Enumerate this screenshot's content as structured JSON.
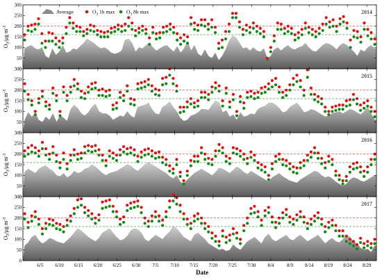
{
  "chart_data": {
    "type": "area-scatter",
    "xlabel": "Date",
    "ylabel": "O",
    "ylabel_sub": "3",
    "ylabel_unit": "/μg m",
    "ylabel_sup": "-3",
    "x_ticks": [
      "6/5",
      "6/10",
      "6/15",
      "6/20",
      "6/25",
      "6/30",
      "7/5",
      "7/10",
      "7/15",
      "7/20",
      "7/25",
      "7/30",
      "8/4",
      "8/9",
      "8/14",
      "8/19",
      "8/24",
      "8/29"
    ],
    "ylim": [
      0,
      300
    ],
    "y_ticks": [
      0,
      50,
      100,
      150,
      200,
      250,
      300
    ],
    "reference_lines": [
      {
        "value": 200,
        "color": "#e03030",
        "style": "dashed"
      },
      {
        "value": 160,
        "color": "#2a9a2a",
        "style": "dashed"
      }
    ],
    "legend": {
      "position": "top-left",
      "entries": [
        {
          "label": "Average",
          "kind": "area",
          "color": "#8a8a8a"
        },
        {
          "label": "O",
          "sub": "3",
          "suffix": " 1h max",
          "kind": "marker",
          "color": "#e01010"
        },
        {
          "label": "O",
          "sub": "3",
          "suffix": " 8h max",
          "kind": "marker",
          "color": "#128a12"
        }
      ]
    },
    "panels": [
      {
        "year": "2014",
        "average": [
          95,
          105,
          110,
          95,
          90,
          100,
          60,
          50,
          95,
          65,
          80,
          110,
          75,
          80,
          95,
          90,
          105,
          120,
          140,
          130,
          120,
          105,
          95,
          100,
          90,
          75,
          70,
          75,
          85,
          135,
          140,
          120,
          80,
          100,
          95,
          110,
          120,
          100,
          85,
          95,
          105,
          110,
          95,
          80,
          105,
          75,
          95,
          130,
          85,
          110,
          70,
          60,
          90,
          60,
          50,
          75,
          40,
          60,
          90,
          130,
          155,
          145,
          120,
          95,
          100,
          85,
          100,
          85,
          80,
          95,
          50,
          60,
          90,
          100,
          85,
          100,
          110,
          95,
          90,
          100,
          105,
          120,
          100,
          85,
          80,
          95,
          110,
          120,
          115,
          105,
          90,
          110,
          120,
          110,
          95,
          80,
          60,
          90,
          80,
          100,
          110,
          95
        ],
        "o3_1h_max": [
          160,
          200,
          205,
          210,
          235,
          165,
          130,
          170,
          165,
          145,
          130,
          145,
          195,
          240,
          215,
          200,
          195,
          175,
          185,
          205,
          200,
          180,
          175,
          170,
          175,
          190,
          195,
          205,
          200,
          210,
          240,
          215,
          180,
          190,
          200,
          185,
          145,
          195,
          165,
          170,
          195,
          200,
          210,
          195,
          165,
          145,
          160,
          150,
          240,
          215,
          205,
          230,
          230,
          210,
          230,
          195,
          120,
          135,
          175,
          210,
          260,
          260,
          220,
          185,
          205,
          195,
          215,
          200,
          190,
          175,
          50,
          100,
          155,
          215,
          210,
          190,
          200,
          190,
          160,
          170,
          185,
          215,
          195,
          185,
          175,
          190,
          210,
          240,
          220,
          230,
          200,
          235,
          245,
          215,
          135,
          180,
          175,
          150,
          215,
          185,
          170,
          140
        ],
        "o3_8h_max": [
          135,
          180,
          175,
          185,
          210,
          120,
          100,
          130,
          130,
          115,
          100,
          120,
          165,
          215,
          190,
          175,
          175,
          155,
          165,
          180,
          175,
          160,
          150,
          150,
          150,
          170,
          175,
          185,
          175,
          180,
          200,
          185,
          155,
          170,
          180,
          165,
          115,
          170,
          140,
          145,
          170,
          175,
          185,
          170,
          135,
          115,
          130,
          120,
          210,
          185,
          180,
          205,
          200,
          185,
          195,
          170,
          95,
          100,
          140,
          175,
          240,
          240,
          195,
          160,
          180,
          170,
          190,
          175,
          165,
          150,
          45,
          80,
          130,
          185,
          185,
          165,
          175,
          165,
          135,
          145,
          160,
          190,
          170,
          160,
          150,
          165,
          180,
          210,
          195,
          200,
          175,
          210,
          220,
          190,
          100,
          150,
          145,
          125,
          185,
          155,
          140,
          115
        ]
      },
      {
        "year": "2015",
        "average": [
          60,
          95,
          75,
          90,
          60,
          50,
          75,
          60,
          90,
          50,
          80,
          70,
          55,
          110,
          130,
          115,
          90,
          80,
          95,
          120,
          135,
          100,
          90,
          90,
          80,
          60,
          70,
          80,
          75,
          100,
          80,
          70,
          120,
          125,
          130,
          140,
          110,
          90,
          85,
          120,
          130,
          145,
          120,
          100,
          70,
          55,
          60,
          80,
          85,
          95,
          110,
          110,
          105,
          130,
          150,
          140,
          95,
          105,
          75,
          85,
          60,
          95,
          75,
          80,
          90,
          85,
          110,
          120,
          125,
          140,
          140,
          130,
          115,
          95,
          100,
          120,
          130,
          140,
          120,
          95,
          100,
          110,
          105,
          95,
          85,
          75,
          80,
          90,
          95,
          100,
          90,
          100,
          110,
          105,
          95,
          85,
          100,
          120,
          90,
          60
        ],
        "o3_1h_max": [
          230,
          180,
          150,
          100,
          160,
          195,
          145,
          130,
          210,
          175,
          100,
          215,
          175,
          215,
          250,
          230,
          195,
          185,
          215,
          230,
          235,
          200,
          205,
          195,
          200,
          130,
          140,
          190,
          175,
          220,
          160,
          155,
          230,
          235,
          240,
          250,
          220,
          205,
          200,
          255,
          260,
          300,
          255,
          220,
          120,
          120,
          145,
          160,
          140,
          150,
          190,
          190,
          180,
          215,
          235,
          220,
          150,
          210,
          145,
          180,
          100,
          170,
          140,
          190,
          195,
          185,
          190,
          210,
          215,
          230,
          245,
          255,
          215,
          190,
          200,
          225,
          255,
          270,
          245,
          200,
          295,
          210,
          180,
          170,
          160,
          120,
          100,
          120,
          125,
          130,
          130,
          150,
          155,
          180,
          160,
          130,
          140,
          150,
          120,
          100
        ],
        "o3_8h_max": [
          195,
          155,
          130,
          85,
          140,
          170,
          125,
          110,
          185,
          150,
          80,
          190,
          150,
          190,
          220,
          205,
          165,
          160,
          190,
          205,
          210,
          175,
          175,
          170,
          175,
          110,
          115,
          165,
          150,
          195,
          135,
          130,
          205,
          210,
          215,
          225,
          195,
          180,
          175,
          225,
          230,
          270,
          230,
          195,
          95,
          100,
          120,
          135,
          120,
          125,
          165,
          165,
          155,
          190,
          210,
          195,
          125,
          185,
          120,
          155,
          80,
          145,
          115,
          165,
          170,
          160,
          165,
          185,
          190,
          205,
          215,
          225,
          190,
          165,
          175,
          200,
          225,
          240,
          215,
          175,
          260,
          180,
          155,
          145,
          135,
          100,
          85,
          100,
          105,
          110,
          110,
          125,
          130,
          155,
          135,
          105,
          115,
          125,
          100,
          75
        ]
      },
      {
        "year": "2016",
        "average": [
          115,
          130,
          120,
          110,
          130,
          140,
          145,
          130,
          120,
          100,
          95,
          110,
          90,
          100,
          120,
          110,
          115,
          130,
          135,
          150,
          140,
          125,
          110,
          100,
          110,
          115,
          120,
          130,
          140,
          150,
          145,
          130,
          120,
          135,
          150,
          160,
          150,
          140,
          130,
          120,
          110,
          95,
          85,
          100,
          70,
          60,
          80,
          95,
          110,
          120,
          130,
          120,
          110,
          100,
          115,
          135,
          130,
          120,
          110,
          125,
          140,
          130,
          115,
          105,
          120,
          110,
          100,
          90,
          80,
          70,
          90,
          100,
          110,
          95,
          85,
          75,
          70,
          65,
          80,
          90,
          100,
          110,
          120,
          115,
          100,
          90,
          95,
          85,
          70,
          60,
          50,
          60,
          80,
          90,
          85,
          75,
          70,
          80,
          90,
          100
        ],
        "o3_1h_max": [
          215,
          230,
          240,
          230,
          215,
          255,
          225,
          200,
          235,
          195,
          160,
          205,
          155,
          195,
          220,
          200,
          205,
          235,
          240,
          235,
          240,
          220,
          195,
          170,
          215,
          205,
          195,
          220,
          235,
          225,
          230,
          220,
          190,
          210,
          220,
          225,
          215,
          205,
          210,
          185,
          175,
          145,
          130,
          175,
          115,
          75,
          120,
          170,
          190,
          190,
          230,
          200,
          180,
          175,
          215,
          245,
          230,
          190,
          180,
          230,
          225,
          215,
          200,
          180,
          210,
          195,
          160,
          150,
          140,
          100,
          155,
          190,
          200,
          175,
          170,
          155,
          140,
          135,
          160,
          170,
          195,
          210,
          230,
          205,
          180,
          160,
          190,
          175,
          120,
          100,
          75,
          95,
          140,
          155,
          160,
          140,
          120,
          140,
          175,
          200
        ],
        "o3_8h_max": [
          190,
          200,
          210,
          205,
          190,
          225,
          195,
          175,
          205,
          165,
          135,
          175,
          130,
          170,
          195,
          175,
          180,
          205,
          215,
          210,
          215,
          195,
          170,
          145,
          190,
          180,
          170,
          195,
          210,
          200,
          205,
          195,
          165,
          185,
          195,
          200,
          190,
          180,
          185,
          160,
          150,
          120,
          110,
          150,
          95,
          60,
          100,
          145,
          165,
          165,
          205,
          175,
          155,
          150,
          190,
          215,
          205,
          165,
          155,
          205,
          200,
          190,
          175,
          155,
          185,
          170,
          135,
          125,
          115,
          80,
          130,
          165,
          175,
          150,
          145,
          130,
          115,
          110,
          135,
          145,
          170,
          185,
          205,
          180,
          155,
          135,
          165,
          150,
          100,
          80,
          60,
          75,
          115,
          130,
          135,
          115,
          95,
          115,
          150,
          175
        ]
      },
      {
        "year": "2017",
        "average": [
          70,
          85,
          110,
          120,
          95,
          80,
          90,
          105,
          100,
          90,
          85,
          80,
          95,
          110,
          130,
          150,
          140,
          125,
          110,
          100,
          90,
          105,
          130,
          140,
          150,
          130,
          110,
          95,
          100,
          115,
          140,
          150,
          145,
          130,
          100,
          90,
          105,
          120,
          110,
          100,
          120,
          135,
          160,
          150,
          130,
          110,
          100,
          90,
          120,
          130,
          115,
          100,
          80,
          70,
          60,
          50,
          55,
          45,
          50,
          75,
          60,
          50,
          70,
          90,
          100,
          110,
          95,
          80,
          110,
          125,
          100,
          90,
          100,
          110,
          120,
          100,
          95,
          110,
          120,
          105,
          90,
          100,
          110,
          120,
          100,
          80,
          95,
          105,
          90,
          85,
          100,
          120,
          110,
          90,
          80,
          60,
          50,
          55,
          40,
          70
        ],
        "o3_1h_max": [
          220,
          180,
          210,
          230,
          195,
          150,
          175,
          195,
          190,
          175,
          170,
          160,
          190,
          210,
          245,
          285,
          290,
          250,
          235,
          220,
          200,
          215,
          275,
          280,
          285,
          255,
          230,
          195,
          205,
          260,
          270,
          275,
          280,
          250,
          200,
          185,
          210,
          230,
          210,
          190,
          230,
          280,
          310,
          295,
          260,
          220,
          195,
          175,
          210,
          220,
          200,
          175,
          160,
          130,
          115,
          90,
          140,
          110,
          120,
          150,
          130,
          100,
          165,
          200,
          245,
          255,
          230,
          190,
          235,
          250,
          205,
          180,
          200,
          225,
          240,
          205,
          195,
          215,
          230,
          205,
          175,
          195,
          210,
          225,
          195,
          160,
          180,
          190,
          165,
          140,
          140,
          115,
          100,
          90,
          75,
          105,
          80,
          90,
          80,
          100
        ],
        "o3_8h_max": [
          195,
          155,
          185,
          205,
          170,
          125,
          150,
          170,
          165,
          150,
          145,
          135,
          165,
          185,
          220,
          250,
          260,
          225,
          210,
          195,
          175,
          190,
          245,
          250,
          255,
          230,
          205,
          170,
          180,
          235,
          245,
          250,
          255,
          225,
          175,
          160,
          185,
          205,
          185,
          165,
          205,
          250,
          280,
          265,
          230,
          195,
          170,
          150,
          185,
          195,
          175,
          150,
          135,
          105,
          90,
          70,
          115,
          85,
          95,
          125,
          105,
          80,
          140,
          175,
          220,
          225,
          205,
          165,
          210,
          225,
          180,
          155,
          175,
          200,
          215,
          180,
          170,
          190,
          205,
          180,
          150,
          170,
          185,
          200,
          170,
          135,
          155,
          165,
          140,
          115,
          115,
          90,
          80,
          70,
          55,
          85,
          60,
          70,
          60,
          80
        ]
      }
    ]
  }
}
